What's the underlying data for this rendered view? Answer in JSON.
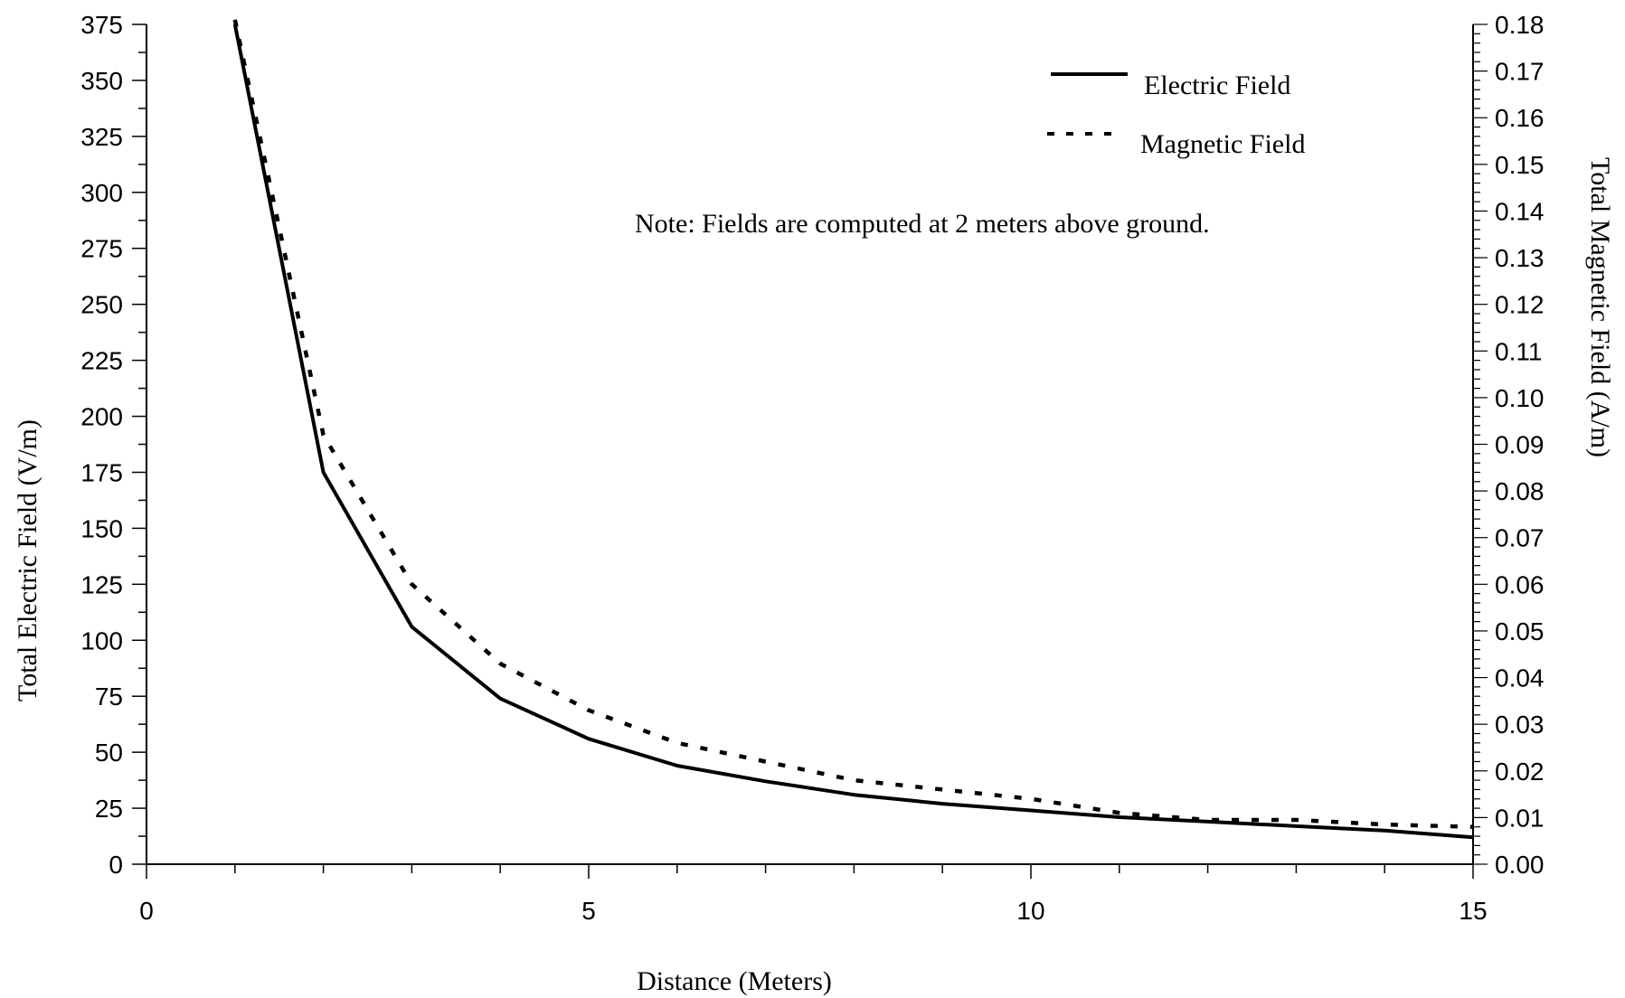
{
  "chart_data": {
    "type": "line",
    "xlabel": "Distance (Meters)",
    "ylabel": "Total Electric Field (V/m)",
    "y2label": "Total Magnetic Field (A/m)",
    "xlim": [
      0,
      15
    ],
    "ylim": [
      0,
      375
    ],
    "y2lim": [
      0,
      0.18
    ],
    "xticks": [
      "0",
      "5",
      "10",
      "15"
    ],
    "yticks": [
      "0",
      "25",
      "50",
      "75",
      "100",
      "125",
      "150",
      "175",
      "200",
      "225",
      "250",
      "275",
      "300",
      "325",
      "350",
      "375"
    ],
    "y2ticks": [
      "0.00",
      "0.01",
      "0.02",
      "0.03",
      "0.04",
      "0.05",
      "0.06",
      "0.07",
      "0.08",
      "0.09",
      "0.10",
      "0.11",
      "0.12",
      "0.13",
      "0.14",
      "0.15",
      "0.16",
      "0.17",
      "0.18"
    ],
    "x": [
      1,
      2,
      3,
      4,
      5,
      6,
      7,
      8,
      9,
      10,
      11,
      12,
      13,
      14,
      15
    ],
    "series": [
      {
        "name": "Electric Field",
        "axis": "left",
        "style": "solid",
        "values": [
          375,
          175,
          106,
          74,
          56,
          44,
          37,
          31,
          27,
          24,
          21,
          19,
          17,
          15,
          12
        ]
      },
      {
        "name": "Magnetic Field",
        "axis": "right",
        "style": "dotted",
        "values": [
          0.181,
          0.092,
          0.06,
          0.043,
          0.033,
          0.026,
          0.022,
          0.018,
          0.016,
          0.014,
          0.011,
          0.0095,
          0.0095,
          0.0085,
          0.008
        ]
      }
    ],
    "legend": {
      "placement": "top-right"
    },
    "annotation": "Note: Fields are computed at 2 meters above ground.",
    "grid": false
  }
}
